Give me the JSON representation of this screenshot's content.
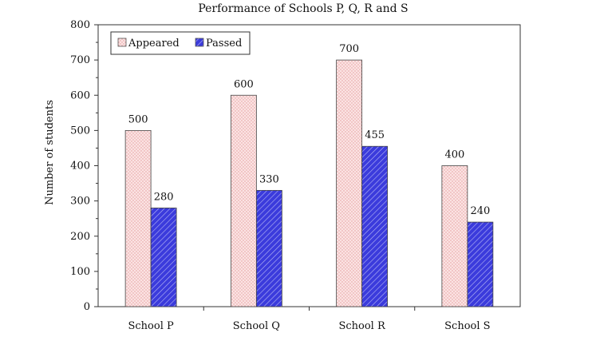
{
  "chart_data": {
    "type": "bar",
    "title": "Performance of Schools P, Q, R and S",
    "xlabel": "",
    "ylabel": "Number of students",
    "categories": [
      "School P",
      "School Q",
      "School R",
      "School S"
    ],
    "series": [
      {
        "name": "Appeared",
        "values": [
          500,
          600,
          700,
          400
        ],
        "color": "#f4c9c9"
      },
      {
        "name": "Passed",
        "values": [
          280,
          330,
          455,
          240
        ],
        "color": "#3a3ad8"
      }
    ],
    "ylim": [
      0,
      800
    ],
    "yticks": [
      0,
      100,
      200,
      300,
      400,
      500,
      600,
      700,
      800
    ],
    "legend": "top-left",
    "grid": false
  }
}
